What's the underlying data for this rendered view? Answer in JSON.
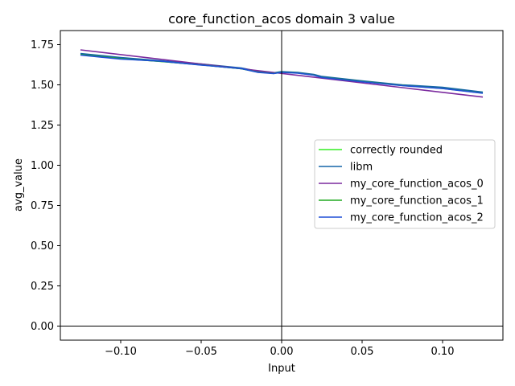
{
  "chart_data": {
    "type": "line",
    "title": "core_function_acos domain 3 value",
    "xlabel": "Input",
    "ylabel": "avg_value",
    "xlim": [
      -0.1375,
      0.1375
    ],
    "ylim": [
      -0.0875,
      1.8375
    ],
    "xticks": [
      -0.1,
      -0.05,
      0.0,
      0.05,
      0.1
    ],
    "xtick_labels": [
      "−0.10",
      "−0.05",
      "0.00",
      "0.05",
      "0.10"
    ],
    "yticks": [
      0.0,
      0.25,
      0.5,
      0.75,
      1.0,
      1.25,
      1.5,
      1.75
    ],
    "ytick_labels": [
      "0.00",
      "0.25",
      "0.50",
      "0.75",
      "1.00",
      "1.25",
      "1.50",
      "1.75"
    ],
    "grid": false,
    "legend_position": "center-right",
    "reference_lines": {
      "x": 0,
      "y": 0
    },
    "series": [
      {
        "name": "correctly rounded",
        "color": "#33ee22",
        "x": [
          -0.125,
          -0.1,
          -0.075,
          -0.05,
          -0.025,
          -0.015,
          -0.005,
          0.0,
          0.01,
          0.02,
          0.025,
          0.05,
          0.075,
          0.1,
          0.125
        ],
        "y": [
          1.69,
          1.665,
          1.645,
          1.625,
          1.6,
          1.58,
          1.572,
          1.58,
          1.575,
          1.562,
          1.548,
          1.522,
          1.497,
          1.48,
          1.45
        ]
      },
      {
        "name": "libm",
        "color": "#1565a8",
        "x": [
          -0.125,
          -0.1,
          -0.075,
          -0.05,
          -0.025,
          -0.015,
          -0.005,
          0.0,
          0.01,
          0.02,
          0.025,
          0.05,
          0.075,
          0.1,
          0.125
        ],
        "y": [
          1.695,
          1.67,
          1.65,
          1.63,
          1.605,
          1.585,
          1.575,
          1.582,
          1.577,
          1.565,
          1.552,
          1.525,
          1.5,
          1.485,
          1.455
        ]
      },
      {
        "name": "my_core_function_acos_0",
        "color": "#7b2a9e",
        "x": [
          -0.125,
          0.125
        ],
        "y": [
          1.7175,
          1.4241
        ]
      },
      {
        "name": "my_core_function_acos_1",
        "color": "#22aa22",
        "x": [
          -0.125,
          -0.1,
          -0.075,
          -0.05,
          -0.025,
          -0.015,
          -0.005,
          0.0,
          0.01,
          0.02,
          0.025,
          0.05,
          0.075,
          0.1,
          0.125
        ],
        "y": [
          1.688,
          1.663,
          1.646,
          1.624,
          1.6,
          1.58,
          1.571,
          1.579,
          1.574,
          1.561,
          1.547,
          1.521,
          1.496,
          1.478,
          1.449
        ]
      },
      {
        "name": "my_core_function_acos_2",
        "color": "#1f4fd6",
        "x": [
          -0.125,
          -0.1,
          -0.075,
          -0.05,
          -0.025,
          -0.015,
          -0.005,
          0.0,
          0.01,
          0.02,
          0.025,
          0.05,
          0.075,
          0.1,
          0.125
        ],
        "y": [
          1.685,
          1.66,
          1.647,
          1.623,
          1.601,
          1.578,
          1.57,
          1.578,
          1.573,
          1.56,
          1.546,
          1.519,
          1.495,
          1.477,
          1.448
        ]
      }
    ]
  }
}
